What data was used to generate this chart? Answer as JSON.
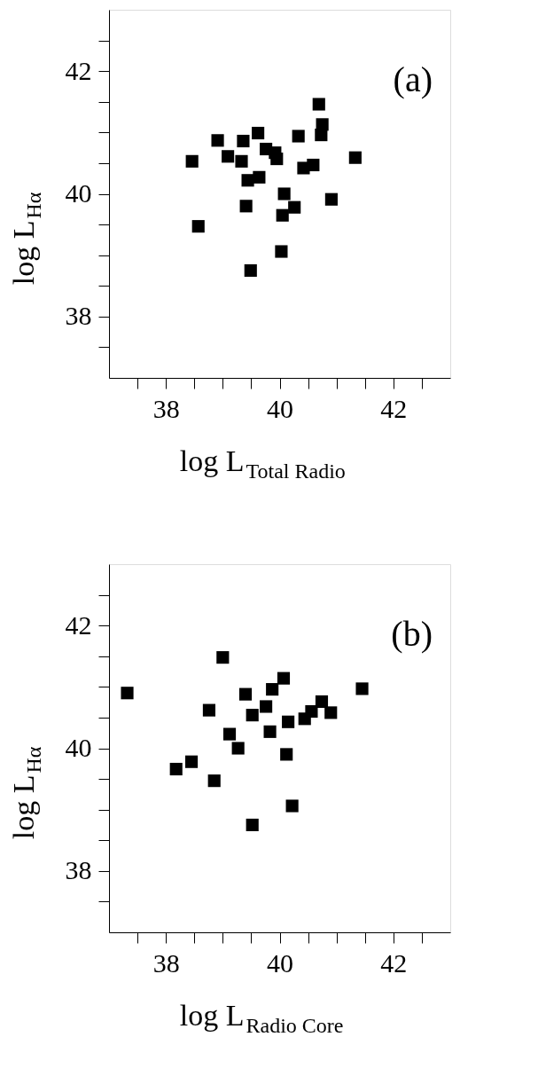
{
  "chart_data": [
    {
      "type": "scatter",
      "xlabel": "log L$_{Total Radio}$",
      "ylabel": "log L$_{Hα}$",
      "annotations": [
        "(a)"
      ],
      "marker": "square",
      "grid": false,
      "xlim": [
        37,
        43
      ],
      "ylim": [
        37,
        43
      ],
      "xticks": [
        {
          "value": 37.5,
          "label": null
        },
        38,
        {
          "value": 38.5,
          "label": null
        },
        {
          "value": 39,
          "label": null
        },
        {
          "value": 39.5,
          "label": null
        },
        40,
        {
          "value": 40.5,
          "label": null
        },
        {
          "value": 41,
          "label": null
        },
        {
          "value": 41.5,
          "label": null
        },
        42,
        {
          "value": 42.5,
          "label": null
        }
      ],
      "yticks": [
        {
          "value": 37.5,
          "label": null
        },
        38,
        {
          "value": 38.5,
          "label": null
        },
        {
          "value": 39,
          "label": null
        },
        {
          "value": 39.5,
          "label": null
        },
        40,
        {
          "value": 40.5,
          "label": null
        },
        {
          "value": 41,
          "label": null
        },
        {
          "value": 41.5,
          "label": null
        },
        42,
        {
          "value": 42.5,
          "label": null
        }
      ],
      "series": [
        {
          "color": "#000000",
          "x": [
            38.46,
            38.57,
            38.91,
            39.09,
            39.36,
            39.33,
            39.62,
            39.76,
            39.92,
            39.95,
            39.44,
            39.64,
            39.41,
            39.49,
            40.08,
            40.05,
            40.26,
            40.03,
            40.33,
            40.42,
            40.59,
            40.69,
            40.75,
            40.73,
            40.91,
            41.33
          ],
          "values": [
            40.53,
            39.47,
            40.87,
            40.61,
            40.86,
            40.53,
            40.99,
            40.73,
            40.67,
            40.57,
            40.22,
            40.27,
            39.8,
            38.75,
            40.0,
            39.65,
            39.78,
            39.06,
            40.94,
            40.42,
            40.47,
            41.46,
            41.13,
            40.96,
            39.91,
            40.59
          ]
        }
      ]
    },
    {
      "type": "scatter",
      "xlabel": "log L$_{Radio Core}$",
      "ylabel": "log L$_{Hα}$",
      "annotations": [
        "(b)"
      ],
      "marker": "square",
      "grid": false,
      "xlim": [
        37,
        43
      ],
      "ylim": [
        37,
        43
      ],
      "xticks": [
        {
          "value": 37.5,
          "label": null
        },
        38,
        {
          "value": 38.5,
          "label": null
        },
        {
          "value": 39,
          "label": null
        },
        {
          "value": 39.5,
          "label": null
        },
        40,
        {
          "value": 40.5,
          "label": null
        },
        {
          "value": 41,
          "label": null
        },
        {
          "value": 41.5,
          "label": null
        },
        42,
        {
          "value": 42.5,
          "label": null
        }
      ],
      "yticks": [
        {
          "value": 37.5,
          "label": null
        },
        38,
        {
          "value": 38.5,
          "label": null
        },
        {
          "value": 39,
          "label": null
        },
        {
          "value": 39.5,
          "label": null
        },
        40,
        {
          "value": 40.5,
          "label": null
        },
        {
          "value": 41,
          "label": null
        },
        {
          "value": 41.5,
          "label": null
        },
        42,
        {
          "value": 42.5,
          "label": null
        }
      ],
      "series": [
        {
          "color": "#000000",
          "x": [
            37.32,
            38.18,
            38.45,
            38.85,
            38.76,
            39.0,
            39.12,
            39.27,
            39.4,
            39.52,
            39.52,
            39.76,
            39.83,
            39.87,
            40.07,
            40.15,
            40.12,
            40.22,
            40.44,
            40.56,
            40.74,
            40.9,
            41.45
          ],
          "values": [
            40.9,
            39.66,
            39.78,
            39.47,
            40.62,
            41.48,
            40.23,
            40.0,
            40.88,
            40.54,
            38.75,
            40.68,
            40.27,
            40.96,
            41.14,
            40.43,
            39.9,
            39.06,
            40.48,
            40.6,
            40.76,
            40.58,
            40.97
          ]
        }
      ]
    }
  ]
}
